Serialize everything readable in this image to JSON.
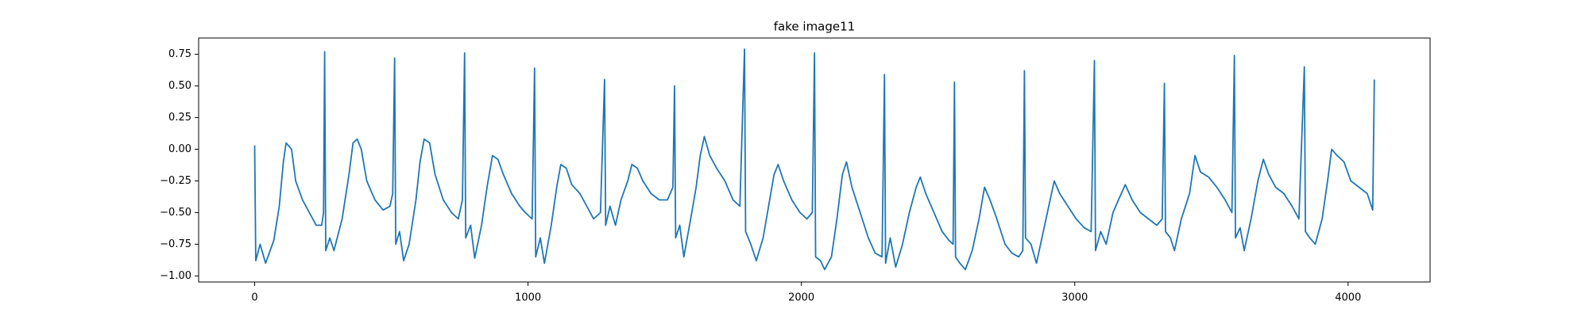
{
  "chart_data": {
    "type": "line",
    "title": "fake image11",
    "x": [
      0,
      4,
      20,
      40,
      70,
      90,
      105,
      115,
      135,
      150,
      175,
      200,
      225,
      245,
      252,
      256,
      260,
      275,
      290,
      320,
      345,
      360,
      375,
      390,
      410,
      440,
      470,
      495,
      505,
      512,
      516,
      530,
      545,
      565,
      590,
      605,
      620,
      640,
      660,
      690,
      720,
      745,
      760,
      768,
      772,
      790,
      805,
      830,
      850,
      870,
      890,
      910,
      940,
      970,
      990,
      1015,
      1024,
      1028,
      1045,
      1060,
      1085,
      1105,
      1120,
      1140,
      1160,
      1190,
      1215,
      1240,
      1265,
      1280,
      1284,
      1300,
      1320,
      1340,
      1365,
      1380,
      1400,
      1420,
      1450,
      1480,
      1510,
      1530,
      1536,
      1540,
      1555,
      1570,
      1595,
      1615,
      1630,
      1645,
      1665,
      1690,
      1720,
      1750,
      1775,
      1792,
      1796,
      1815,
      1835,
      1860,
      1880,
      1900,
      1915,
      1935,
      1965,
      1995,
      2020,
      2040,
      2048,
      2052,
      2070,
      2085,
      2110,
      2130,
      2150,
      2165,
      2185,
      2215,
      2245,
      2270,
      2295,
      2304,
      2308,
      2325,
      2345,
      2370,
      2395,
      2420,
      2435,
      2455,
      2485,
      2515,
      2540,
      2555,
      2560,
      2564,
      2580,
      2600,
      2625,
      2650,
      2670,
      2690,
      2715,
      2745,
      2770,
      2795,
      2810,
      2816,
      2820,
      2840,
      2860,
      2885,
      2905,
      2925,
      2945,
      2975,
      3005,
      3035,
      3060,
      3072,
      3076,
      3095,
      3115,
      3140,
      3160,
      3185,
      3210,
      3240,
      3270,
      3300,
      3320,
      3328,
      3332,
      3350,
      3365,
      3390,
      3420,
      3440,
      3460,
      3490,
      3520,
      3550,
      3575,
      3584,
      3588,
      3605,
      3620,
      3645,
      3670,
      3690,
      3710,
      3735,
      3765,
      3795,
      3820,
      3840,
      3844,
      3860,
      3880,
      3905,
      3925,
      3940,
      3960,
      3985,
      4010,
      4040,
      4070,
      4090,
      4096
    ],
    "series": [
      {
        "color": "#1f77b4",
        "values": [
          0.03,
          -0.88,
          -0.75,
          -0.9,
          -0.72,
          -0.45,
          -0.1,
          0.05,
          0.0,
          -0.25,
          -0.4,
          -0.5,
          -0.6,
          -0.6,
          -0.5,
          0.77,
          -0.8,
          -0.7,
          -0.8,
          -0.55,
          -0.2,
          0.05,
          0.08,
          0.0,
          -0.25,
          -0.4,
          -0.48,
          -0.45,
          -0.35,
          0.72,
          -0.75,
          -0.65,
          -0.88,
          -0.75,
          -0.4,
          -0.1,
          0.08,
          0.05,
          -0.2,
          -0.4,
          -0.5,
          -0.55,
          -0.4,
          0.76,
          -0.7,
          -0.6,
          -0.86,
          -0.6,
          -0.3,
          -0.05,
          -0.08,
          -0.2,
          -0.35,
          -0.45,
          -0.5,
          -0.55,
          0.64,
          -0.85,
          -0.7,
          -0.9,
          -0.6,
          -0.3,
          -0.12,
          -0.15,
          -0.28,
          -0.35,
          -0.45,
          -0.55,
          -0.5,
          0.55,
          -0.6,
          -0.45,
          -0.6,
          -0.4,
          -0.25,
          -0.12,
          -0.15,
          -0.25,
          -0.35,
          -0.4,
          -0.4,
          -0.3,
          0.5,
          -0.7,
          -0.6,
          -0.85,
          -0.55,
          -0.3,
          -0.05,
          0.1,
          -0.05,
          -0.15,
          -0.25,
          -0.4,
          -0.45,
          0.79,
          -0.65,
          -0.75,
          -0.88,
          -0.7,
          -0.45,
          -0.2,
          -0.12,
          -0.25,
          -0.4,
          -0.5,
          -0.55,
          -0.5,
          0.76,
          -0.85,
          -0.88,
          -0.95,
          -0.85,
          -0.55,
          -0.2,
          -0.1,
          -0.3,
          -0.5,
          -0.7,
          -0.82,
          -0.85,
          0.59,
          -0.9,
          -0.7,
          -0.93,
          -0.75,
          -0.5,
          -0.3,
          -0.22,
          -0.35,
          -0.5,
          -0.65,
          -0.72,
          -0.75,
          0.53,
          -0.85,
          -0.9,
          -0.95,
          -0.8,
          -0.55,
          -0.3,
          -0.4,
          -0.55,
          -0.75,
          -0.82,
          -0.85,
          -0.8,
          0.62,
          -0.7,
          -0.75,
          -0.9,
          -0.65,
          -0.45,
          -0.25,
          -0.35,
          -0.45,
          -0.55,
          -0.62,
          -0.65,
          0.7,
          -0.8,
          -0.65,
          -0.75,
          -0.5,
          -0.4,
          -0.28,
          -0.4,
          -0.5,
          -0.55,
          -0.6,
          -0.55,
          0.52,
          -0.65,
          -0.7,
          -0.8,
          -0.55,
          -0.35,
          -0.05,
          -0.18,
          -0.22,
          -0.3,
          -0.4,
          -0.5,
          0.74,
          -0.7,
          -0.62,
          -0.8,
          -0.55,
          -0.25,
          -0.08,
          -0.2,
          -0.3,
          -0.35,
          -0.45,
          -0.55,
          0.65,
          -0.65,
          -0.7,
          -0.75,
          -0.55,
          -0.25,
          0.0,
          -0.05,
          -0.1,
          -0.25,
          -0.3,
          -0.35,
          -0.48,
          0.55
        ]
      }
    ],
    "xlim": [
      -205,
      4300
    ],
    "ylim": [
      -1.048,
      0.878
    ],
    "xticks": [
      0,
      1000,
      2000,
      3000,
      4000
    ],
    "yticks": [
      0.75,
      {
        "value": 0.5,
        "label": "0.50"
      },
      0.25,
      {
        "value": 0,
        "label": "0.00"
      },
      {
        "value": -0.25,
        "label": "−0.25"
      },
      {
        "value": -0.5,
        "label": "−0.50"
      },
      {
        "value": -0.75,
        "label": "−0.75"
      },
      {
        "value": -1,
        "label": "−1.00"
      }
    ],
    "grid": false
  }
}
